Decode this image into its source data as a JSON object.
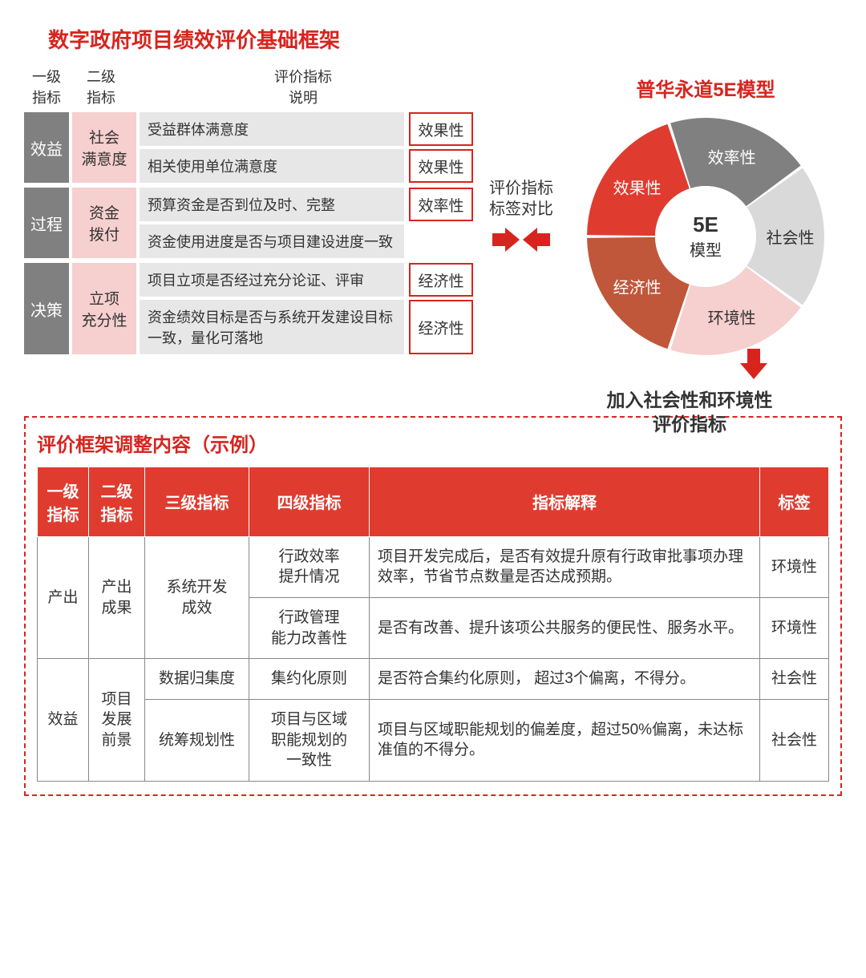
{
  "colors": {
    "primary_red": "#d8241f",
    "header_red": "#df3c2f",
    "gray_dark": "#808080",
    "gray_light": "#e7e7e7",
    "pink_light": "#f6cfcf",
    "text": "#333333",
    "white": "#ffffff",
    "border_gray": "#888888"
  },
  "main_title": "数字政府项目绩效评价基础框架",
  "framework_headers": {
    "col1": "一级\n指标",
    "col2": "二级\n指标",
    "col3": "评价指标\n说明"
  },
  "framework_rows": [
    {
      "lvl1": "效益",
      "lvl2": "社会\n满意度",
      "items": [
        {
          "desc": "受益群体满意度",
          "tag": "效果性"
        },
        {
          "desc": "相关使用单位满意度",
          "tag": "效果性"
        }
      ]
    },
    {
      "lvl1": "过程",
      "lvl2": "资金\n拨付",
      "items": [
        {
          "desc": "预算资金是否到位及时、完整",
          "tag": "效率性"
        },
        {
          "desc": "资金使用进度是否与项目建设进度一致",
          "tag": ""
        }
      ]
    },
    {
      "lvl1": "决策",
      "lvl2": "立项\n充分性",
      "items": [
        {
          "desc": "项目立项是否经过充分论证、评审",
          "tag": "经济性"
        },
        {
          "desc": "资金绩效目标是否与系统开发建设目标一致，量化可落地",
          "tag": "经济性"
        }
      ]
    }
  ],
  "compare_label": "评价指标\n标签对比",
  "model_title": "普华永道5E模型",
  "donut": {
    "center_big": "5E",
    "center_small": "模型",
    "inner_radius_pct": 42,
    "slices": [
      {
        "label": "效果性",
        "color": "#df3c2f",
        "text_color": "#ffffff",
        "angle_center": 306
      },
      {
        "label": "效率性",
        "color": "#808080",
        "text_color": "#ffffff",
        "angle_center": 18
      },
      {
        "label": "社会性",
        "color": "#d9d9d9",
        "text_color": "#333333",
        "angle_center": 90
      },
      {
        "label": "环境性",
        "color": "#f6cfcf",
        "text_color": "#333333",
        "angle_center": 162
      },
      {
        "label": "经济性",
        "color": "#c0573a",
        "text_color": "#ffffff",
        "angle_center": 234
      }
    ],
    "gap_deg": 1.5
  },
  "add_label": "加入社会性和环境性\n评价指标",
  "example_title": "评价框架调整内容（示例）",
  "example_headers": [
    "一级\n指标",
    "二级\n指标",
    "三级指标",
    "四级指标",
    "指标解释",
    "标签"
  ],
  "example_rows": [
    {
      "l1": "产出",
      "l1_rowspan": 2,
      "l2": "产出\n成果",
      "l2_rowspan": 2,
      "l3": "系统开发\n成效",
      "l3_rowspan": 2,
      "l4": "行政效率\n提升情况",
      "exp": "项目开发完成后，是否有效提升原有行政审批事项办理效率，节省节点数量是否达成预期。",
      "tag": "环境性"
    },
    {
      "l4": "行政管理\n能力改善性",
      "exp": "是否有改善、提升该项公共服务的便民性、服务水平。",
      "tag": "环境性"
    },
    {
      "l1": "效益",
      "l1_rowspan": 2,
      "l2": "项目\n发展\n前景",
      "l2_rowspan": 2,
      "l3": "数据归集度",
      "l4": "集约化原则",
      "exp": "是否符合集约化原则，  超过3个偏离，不得分。",
      "tag": "社会性"
    },
    {
      "l3": "统筹规划性",
      "l4": "项目与区域\n职能规划的\n一致性",
      "exp": "项目与区域职能规划的偏差度，超过50%偏离，未达标准值的不得分。",
      "tag": "社会性"
    }
  ]
}
